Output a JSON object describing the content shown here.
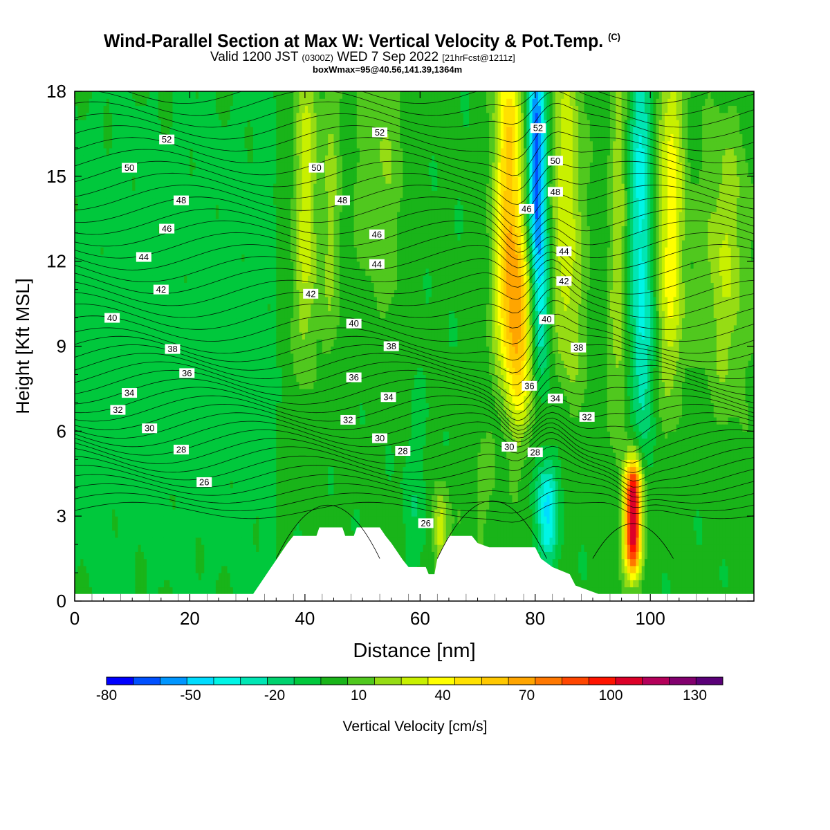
{
  "chart_data": {
    "type": "heatmap",
    "title": "Wind-Parallel Section at Max W: Vertical Velocity & Pot.Temp.",
    "title_mark": "(C)",
    "subtitle_main_a": "Valid 1200 JST",
    "subtitle_small_a": "(0300Z)",
    "subtitle_main_b": "WED 7 Sep 2022",
    "subtitle_small_b": "[21hrFcst@1211z]",
    "subtitle2": "boxWmax=95@40.56,141.39,1364m",
    "xlabel": "Distance [nm]",
    "ylabel": "Height [Kft MSL]",
    "xlim": [
      0,
      118
    ],
    "ylim": [
      0,
      18
    ],
    "xticks": [
      "0",
      "20",
      "40",
      "60",
      "80",
      "100"
    ],
    "yticks": [
      "0",
      "3",
      "6",
      "9",
      "12",
      "15",
      "18"
    ],
    "colorbar": {
      "label": "Vertical Velocity [cm/s]",
      "tick_labels": [
        "-80",
        "-50",
        "-20",
        "10",
        "40",
        "70",
        "100",
        "130"
      ],
      "bounds": [
        -80,
        -70,
        -60,
        -50,
        -40,
        -30,
        -20,
        -10,
        0,
        10,
        20,
        30,
        40,
        50,
        60,
        70,
        80,
        90,
        100,
        110,
        120,
        130,
        140
      ],
      "colors": [
        "#0000ff",
        "#0050ff",
        "#0096ff",
        "#00dcff",
        "#00f5e6",
        "#00e6b4",
        "#00d26e",
        "#00c83c",
        "#19b419",
        "#50c81e",
        "#96dc14",
        "#c8f000",
        "#ffff00",
        "#ffe100",
        "#ffc800",
        "#ffa500",
        "#ff7800",
        "#ff4600",
        "#ff1400",
        "#dc0028",
        "#b4005a",
        "#82006e",
        "#5a0078"
      ]
    },
    "updrafts": [
      {
        "center_x": 97,
        "base_y": 0.8,
        "top_y": 5.2,
        "peak_cm_s": 125
      },
      {
        "center_x": 76.5,
        "base_y": 6.5,
        "top_y": 18,
        "peak_cm_s": 65
      },
      {
        "center_x": 40,
        "base_y": 9,
        "top_y": 18,
        "peak_cm_s": 45
      },
      {
        "center_x": 103,
        "base_y": 8,
        "top_y": 18,
        "peak_cm_s": 45
      },
      {
        "center_x": 63.5,
        "base_y": 1.2,
        "top_y": 4,
        "peak_cm_s": 45
      }
    ],
    "downdrafts": [
      {
        "center_x": 80,
        "base_y": 12,
        "top_y": 18,
        "peak_cm_s": -80
      },
      {
        "center_x": 81.5,
        "base_y": 1.5,
        "top_y": 4.5,
        "peak_cm_s": -50
      },
      {
        "center_x": 98.5,
        "base_y": 6.5,
        "top_y": 18,
        "peak_cm_s": -40
      }
    ],
    "terrain": [
      [
        0,
        0.25
      ],
      [
        31,
        0.25
      ],
      [
        32,
        0.55
      ],
      [
        33,
        0.85
      ],
      [
        34,
        1.15
      ],
      [
        35,
        1.45
      ],
      [
        36,
        1.75
      ],
      [
        37,
        2.05
      ],
      [
        38,
        2.3
      ],
      [
        42,
        2.3
      ],
      [
        42.5,
        2.6
      ],
      [
        46.5,
        2.6
      ],
      [
        47,
        2.3
      ],
      [
        48.5,
        2.3
      ],
      [
        49,
        2.6
      ],
      [
        53,
        2.6
      ],
      [
        54,
        2.3
      ],
      [
        55,
        2.05
      ],
      [
        56,
        1.75
      ],
      [
        57,
        1.45
      ],
      [
        58,
        1.2
      ],
      [
        61,
        1.2
      ],
      [
        61.5,
        0.95
      ],
      [
        62.5,
        0.95
      ],
      [
        63,
        1.5
      ],
      [
        65,
        2.3
      ],
      [
        69,
        2.3
      ],
      [
        70,
        2.05
      ],
      [
        72,
        1.9
      ],
      [
        80,
        1.9
      ],
      [
        81,
        1.5
      ],
      [
        83,
        1.2
      ],
      [
        86,
        0.95
      ],
      [
        87,
        0.55
      ],
      [
        91,
        0.25
      ],
      [
        118,
        0.25
      ]
    ],
    "theta_contours": [
      "26",
      "28",
      "30",
      "32",
      "34",
      "36",
      "38",
      "40",
      "42",
      "44",
      "46",
      "48",
      "50",
      "52"
    ],
    "contour_labels": [
      {
        "text": "52",
        "x": 16,
        "y": 16.3
      },
      {
        "text": "50",
        "x": 9.5,
        "y": 15.3
      },
      {
        "text": "48",
        "x": 18.5,
        "y": 14.15
      },
      {
        "text": "46",
        "x": 16,
        "y": 13.15
      },
      {
        "text": "44",
        "x": 12,
        "y": 12.15
      },
      {
        "text": "42",
        "x": 15,
        "y": 11.0
      },
      {
        "text": "40",
        "x": 6.5,
        "y": 10.0
      },
      {
        "text": "38",
        "x": 17,
        "y": 8.9
      },
      {
        "text": "36",
        "x": 19.5,
        "y": 8.05
      },
      {
        "text": "34",
        "x": 9.5,
        "y": 7.35
      },
      {
        "text": "32",
        "x": 7.5,
        "y": 6.75
      },
      {
        "text": "30",
        "x": 13,
        "y": 6.1
      },
      {
        "text": "28",
        "x": 18.5,
        "y": 5.35
      },
      {
        "text": "26",
        "x": 22.5,
        "y": 4.2
      },
      {
        "text": "52",
        "x": 53,
        "y": 16.55
      },
      {
        "text": "50",
        "x": 42,
        "y": 15.3
      },
      {
        "text": "48",
        "x": 46.5,
        "y": 14.15
      },
      {
        "text": "46",
        "x": 52.5,
        "y": 12.95
      },
      {
        "text": "44",
        "x": 52.5,
        "y": 11.9
      },
      {
        "text": "42",
        "x": 41,
        "y": 10.85
      },
      {
        "text": "40",
        "x": 48.5,
        "y": 9.8
      },
      {
        "text": "38",
        "x": 55,
        "y": 9.0
      },
      {
        "text": "36",
        "x": 48.5,
        "y": 7.9
      },
      {
        "text": "34",
        "x": 54.5,
        "y": 7.2
      },
      {
        "text": "32",
        "x": 47.5,
        "y": 6.4
      },
      {
        "text": "30",
        "x": 53,
        "y": 5.75
      },
      {
        "text": "28",
        "x": 57,
        "y": 5.3
      },
      {
        "text": "26",
        "x": 61,
        "y": 2.75
      },
      {
        "text": "52",
        "x": 80.5,
        "y": 16.7
      },
      {
        "text": "50",
        "x": 83.5,
        "y": 15.55
      },
      {
        "text": "48",
        "x": 83.5,
        "y": 14.45
      },
      {
        "text": "46",
        "x": 78.5,
        "y": 13.85
      },
      {
        "text": "44",
        "x": 85,
        "y": 12.35
      },
      {
        "text": "42",
        "x": 85,
        "y": 11.3
      },
      {
        "text": "40",
        "x": 82,
        "y": 9.95
      },
      {
        "text": "38",
        "x": 87.5,
        "y": 8.95
      },
      {
        "text": "36",
        "x": 79,
        "y": 7.6
      },
      {
        "text": "34",
        "x": 83.5,
        "y": 7.15
      },
      {
        "text": "32",
        "x": 89,
        "y": 6.5
      },
      {
        "text": "30",
        "x": 75.5,
        "y": 5.45
      },
      {
        "text": "28",
        "x": 80,
        "y": 5.25
      }
    ]
  }
}
